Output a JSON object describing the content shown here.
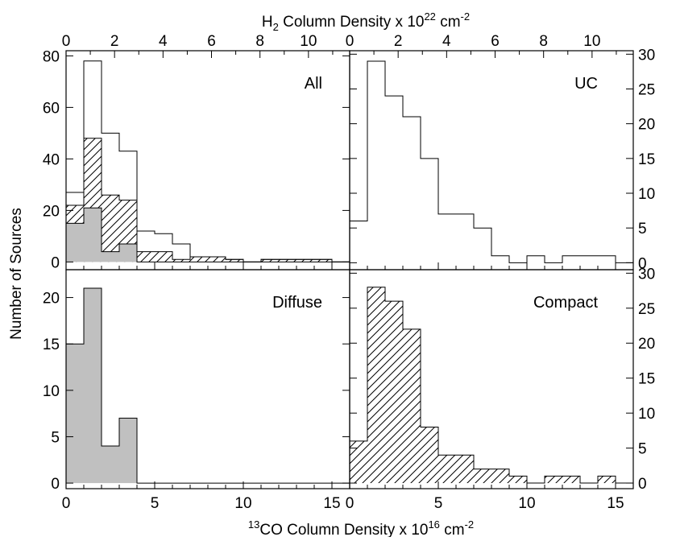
{
  "figure": {
    "top_axis_title": {
      "base": "H",
      "sub": "2",
      "mid": " Column Density x 10",
      "sup": "22",
      "unit": " cm",
      "unit_sup": "-2"
    },
    "bottom_axis_title": {
      "pre_sup": "13",
      "mid": "CO Column Density x 10",
      "sup": "16",
      "unit": " cm",
      "unit_sup": "-2"
    },
    "y_axis_title": "Number of Sources"
  },
  "chart_data": [
    {
      "type": "bar",
      "panel": "All",
      "title": "All",
      "xlabel": "13CO Column Density x 10^16 cm^-2",
      "ylabel": "Number of Sources",
      "x_bin_edges": [
        0,
        1,
        2,
        3,
        4,
        5,
        6,
        7,
        8,
        9,
        10,
        11,
        12,
        13,
        14,
        15,
        16
      ],
      "xlim": [
        0,
        16
      ],
      "ylim": [
        -3,
        82
      ],
      "yticks": [
        0,
        20,
        40,
        60,
        80
      ],
      "top_axis": {
        "label": "H2 Column Density x 10^22 cm^-2",
        "xlim": [
          0,
          11.7
        ],
        "ticks": [
          0,
          2,
          4,
          6,
          8,
          10
        ]
      },
      "series": [
        {
          "values": [
            27,
            78,
            50,
            43,
            12,
            11,
            7,
            2,
            2,
            1,
            0,
            1,
            1,
            1,
            1,
            0
          ],
          "fill": "none"
        },
        {
          "values": [
            22,
            48,
            26,
            24,
            4,
            4,
            1,
            2,
            2,
            1,
            0,
            1,
            1,
            1,
            1,
            0
          ],
          "fill": "hatch"
        },
        {
          "values": [
            15,
            21,
            4,
            7,
            0,
            0,
            0,
            0,
            0,
            0,
            0,
            0,
            0,
            0,
            0,
            0
          ],
          "fill": "#c0c0c0"
        }
      ]
    },
    {
      "type": "bar",
      "panel": "UC",
      "title": "UC",
      "x_bin_edges": [
        0,
        1,
        2,
        3,
        4,
        5,
        6,
        7,
        8,
        9,
        10,
        11,
        12,
        13,
        14,
        15,
        16
      ],
      "xlim": [
        0,
        16
      ],
      "ylim": [
        -1,
        30.5
      ],
      "yticks": [
        0,
        5,
        10,
        15,
        20,
        25,
        30
      ],
      "top_axis": {
        "xlim": [
          0,
          11.7
        ],
        "ticks": [
          0,
          2,
          4,
          6,
          8,
          10
        ]
      },
      "series": [
        {
          "values": [
            6,
            29,
            24,
            21,
            15,
            7,
            7,
            5,
            1,
            0,
            1,
            0,
            1,
            1,
            1,
            0
          ],
          "fill": "none"
        }
      ]
    },
    {
      "type": "bar",
      "panel": "Diffuse",
      "title": "Diffuse",
      "x_bin_edges": [
        0,
        1,
        2,
        3,
        4,
        5,
        6,
        7,
        8,
        9,
        10,
        11,
        12,
        13,
        14,
        15,
        16
      ],
      "xlim": [
        0,
        16
      ],
      "ylim": [
        -0.6,
        23
      ],
      "xticks": [
        0,
        5,
        10,
        15
      ],
      "yticks": [
        0,
        5,
        10,
        15,
        20
      ],
      "series": [
        {
          "values": [
            15,
            21,
            4,
            7,
            0,
            0,
            0,
            0,
            0,
            0,
            0,
            0,
            0,
            0,
            0,
            0
          ],
          "fill": "#c0c0c0"
        }
      ]
    },
    {
      "type": "bar",
      "panel": "Compact",
      "title": "Compact",
      "x_bin_edges": [
        0,
        1,
        2,
        3,
        4,
        5,
        6,
        7,
        8,
        9,
        10,
        11,
        12,
        13,
        14,
        15,
        16
      ],
      "xlim": [
        0,
        16
      ],
      "ylim": [
        -0.8,
        30.5
      ],
      "xticks": [
        0,
        5,
        10,
        15
      ],
      "yticks": [
        0,
        5,
        10,
        15,
        20,
        25,
        30
      ],
      "series": [
        {
          "values": [
            6,
            28,
            26,
            22,
            8,
            4,
            4,
            2,
            2,
            1,
            0,
            1,
            1,
            0,
            1,
            0
          ],
          "fill": "hatch"
        }
      ]
    }
  ]
}
